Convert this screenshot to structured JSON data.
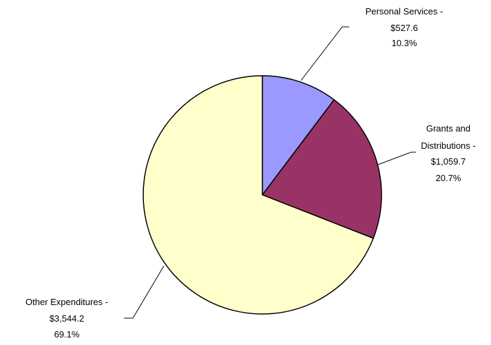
{
  "chart_data": {
    "type": "pie",
    "title": "",
    "start_angle_deg": 0,
    "direction": "clockwise",
    "legend": "none",
    "slices": [
      {
        "label": "Personal Services -",
        "amount": "$527.6",
        "percent_label": "10.3%",
        "value": 527.6,
        "percent": 10.3,
        "color": "#9999ff"
      },
      {
        "label": "Grants and Distributions -",
        "amount": "$1,059.7",
        "percent_label": "20.7%",
        "value": 1059.7,
        "percent": 20.7,
        "color": "#993366"
      },
      {
        "label": "Other Expenditures -",
        "amount": "$3,544.2",
        "percent_label": "69.1%",
        "value": 3544.2,
        "percent": 69.1,
        "color": "#ffffcc"
      }
    ]
  }
}
